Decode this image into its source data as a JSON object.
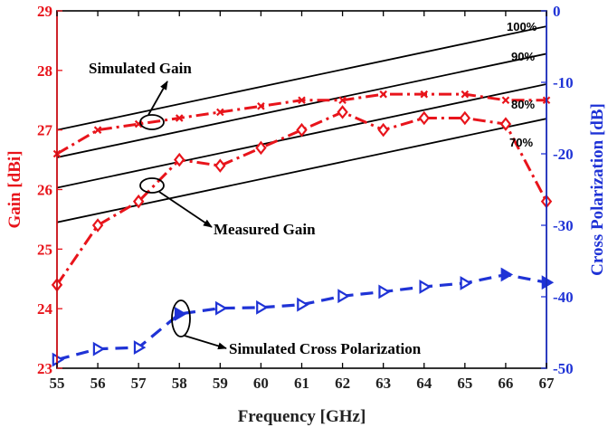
{
  "chart_data": {
    "type": "line",
    "xlabel": "Frequency [GHz]",
    "ylabel_left": "Gain [dBi]",
    "ylabel_right": "Cross Polarization [dB]",
    "xlim": [
      55,
      67
    ],
    "ylim_left": [
      23,
      29
    ],
    "ylim_right": [
      -50,
      0
    ],
    "x_ticks": [
      "55",
      "56",
      "57",
      "58",
      "59",
      "60",
      "61",
      "62",
      "63",
      "64",
      "65",
      "66",
      "67"
    ],
    "y_ticks_left": [
      "23",
      "24",
      "25",
      "26",
      "27",
      "28",
      "29"
    ],
    "y_ticks_right": [
      "-50",
      "-40",
      "-30",
      "-20",
      "-10",
      "0"
    ],
    "colors": {
      "left_axis": "#e8141b",
      "right_axis": "#1f33d6",
      "frame": "#000000"
    },
    "series": [
      {
        "name": "Simulated Gain",
        "axis": "left",
        "marker": "x",
        "color": "#e8141b",
        "x": [
          55,
          56,
          57,
          58,
          59,
          60,
          61,
          62,
          63,
          64,
          65,
          66,
          67
        ],
        "values": [
          26.6,
          27.0,
          27.1,
          27.2,
          27.3,
          27.4,
          27.5,
          27.5,
          27.6,
          27.6,
          27.6,
          27.5,
          27.5
        ]
      },
      {
        "name": "Measured Gain",
        "axis": "left",
        "marker": "diamond",
        "color": "#e8141b",
        "x": [
          55,
          56,
          57,
          58,
          59,
          60,
          61,
          62,
          63,
          64,
          65,
          66,
          67
        ],
        "values": [
          24.4,
          25.4,
          25.8,
          26.5,
          26.4,
          26.7,
          27.0,
          27.3,
          27.0,
          27.2,
          27.2,
          27.1,
          25.8
        ]
      },
      {
        "name": "Simulated Cross Polarization",
        "axis": "right",
        "marker": "triangle-right",
        "color": "#1f33d6",
        "x": [
          55,
          56,
          57,
          58,
          59,
          60,
          61,
          62,
          63,
          64,
          65,
          66,
          67
        ],
        "values": [
          -48.8,
          -47.3,
          -47.1,
          -42.4,
          -41.6,
          -41.5,
          -41.1,
          -39.9,
          -39.3,
          -38.6,
          -38.1,
          -36.9,
          -38.0
        ]
      }
    ],
    "efficiency_lines": [
      {
        "label": "100%",
        "x": [
          55,
          67
        ],
        "values": [
          27.0,
          28.74
        ]
      },
      {
        "label": "90%",
        "x": [
          55,
          67
        ],
        "values": [
          26.54,
          28.28
        ]
      },
      {
        "label": "80%",
        "x": [
          55,
          67
        ],
        "values": [
          26.03,
          27.77
        ]
      },
      {
        "label": "70%",
        "x": [
          55,
          67
        ],
        "values": [
          25.45,
          27.19
        ]
      }
    ],
    "annotations": [
      {
        "text": "Simulated Gain",
        "points_to": "Simulated Gain"
      },
      {
        "text": "Measured Gain",
        "points_to": "Measured Gain"
      },
      {
        "text": "Simulated Cross Polarization",
        "points_to": "Simulated Cross Polarization"
      }
    ]
  }
}
